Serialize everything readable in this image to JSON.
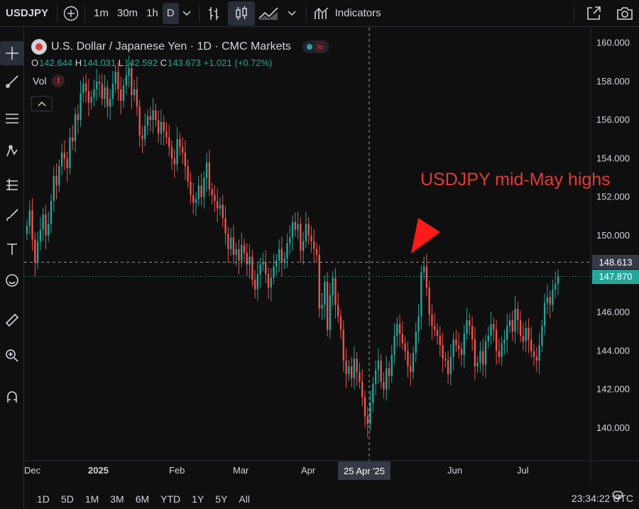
{
  "toolbar": {
    "symbol": "USDJPY",
    "intervals": [
      "1m",
      "30m",
      "1h",
      "D"
    ],
    "active_interval": "D",
    "indicators_label": "Indicators"
  },
  "legend": {
    "title": "U.S. Dollar / Japanese Yen · 1D · CMC Markets",
    "status_symbol": "≈",
    "open_key": "O",
    "open": "142.644",
    "high_key": "H",
    "high": "144.031",
    "low_key": "L",
    "low": "142.592",
    "close_key": "C",
    "close": "143.673",
    "change": "+1.021 (+0.72%)",
    "vol_label": "Vol",
    "vol_warn": "!"
  },
  "annotation": "USDJPY mid-May highs",
  "crosshair": {
    "price": "148.613",
    "date": "25 Apr '25"
  },
  "last_price": "147.870",
  "bottom": {
    "ranges": [
      "1D",
      "5D",
      "1M",
      "3M",
      "6M",
      "YTD",
      "1Y",
      "5Y",
      "All"
    ],
    "clock": "23:34:22 UTC"
  },
  "colors": {
    "up": "#26a69a",
    "down": "#ef5350",
    "annotation": "#e53935"
  },
  "chart_data": {
    "type": "candlestick",
    "title": "U.S. Dollar / Japanese Yen · 1D · CMC Markets",
    "x_tick_labels": [
      "Dec",
      "2025",
      "Feb",
      "Mar",
      "Apr",
      "Jun",
      "Jul"
    ],
    "y_tick_labels": [
      "160.000",
      "158.000",
      "156.000",
      "154.000",
      "152.000",
      "150.000",
      "148.000",
      "146.000",
      "144.000",
      "142.000",
      "140.000"
    ],
    "ylim": [
      138.3,
      160.8
    ],
    "grid": false,
    "closes": [
      150.5,
      151.3,
      149.8,
      148.6,
      149.7,
      150.3,
      151.1,
      150.0,
      150.6,
      151.8,
      153.1,
      152.6,
      153.6,
      154.3,
      154.0,
      153.5,
      155.1,
      154.9,
      156.3,
      156.0,
      157.4,
      157.9,
      157.5,
      156.9,
      157.2,
      157.6,
      158.0,
      157.9,
      157.1,
      157.7,
      156.7,
      157.1,
      157.9,
      158.5,
      157.6,
      157.0,
      157.8,
      158.3,
      158.7,
      157.3,
      157.6,
      156.7,
      155.2,
      155.0,
      155.7,
      156.2,
      156.0,
      156.5,
      156.0,
      155.3,
      155.9,
      155.4,
      155.1,
      154.6,
      154.0,
      153.7,
      155.0,
      154.6,
      154.3,
      153.6,
      152.8,
      152.1,
      151.7,
      151.9,
      152.6,
      152.0,
      153.0,
      153.8,
      152.4,
      152.1,
      151.8,
      151.4,
      151.6,
      150.9,
      150.1,
      149.3,
      149.9,
      149.0,
      149.3,
      148.7,
      149.5,
      149.1,
      148.5,
      148.9,
      147.7,
      147.2,
      148.0,
      148.5,
      148.6,
      148.0,
      147.3,
      147.8,
      148.4,
      148.7,
      149.3,
      148.6,
      148.8,
      149.6,
      149.9,
      150.7,
      150.3,
      150.6,
      149.2,
      149.7,
      150.6,
      150.0,
      149.7,
      149.3,
      149.0,
      146.2,
      146.4,
      147.6,
      145.1,
      146.9,
      147.8,
      146.4,
      145.8,
      145.1,
      143.5,
      142.8,
      143.2,
      142.6,
      143.6,
      142.9,
      142.4,
      141.6,
      140.6,
      140.2,
      141.3,
      142.3,
      143.0,
      143.5,
      142.4,
      142.0,
      143.1,
      142.7,
      143.8,
      144.8,
      145.4,
      144.9,
      144.4,
      144.0,
      143.2,
      142.9,
      143.9,
      145.0,
      145.8,
      148.1,
      148.4,
      147.3,
      145.9,
      145.3,
      145.1,
      144.8,
      144.3,
      143.6,
      143.5,
      142.8,
      143.7,
      144.6,
      144.3,
      144.1,
      143.8,
      144.9,
      145.6,
      145.3,
      144.6,
      143.2,
      143.4,
      144.0,
      143.3,
      144.5,
      144.8,
      145.4,
      145.1,
      144.0,
      143.7,
      144.4,
      144.6,
      145.3,
      145.6,
      145.0,
      146.2,
      145.6,
      144.8,
      144.5,
      145.2,
      144.6,
      144.0,
      143.7,
      143.5,
      144.3,
      145.3,
      146.5,
      146.8,
      146.4,
      147.2,
      147.5,
      147.9
    ]
  }
}
